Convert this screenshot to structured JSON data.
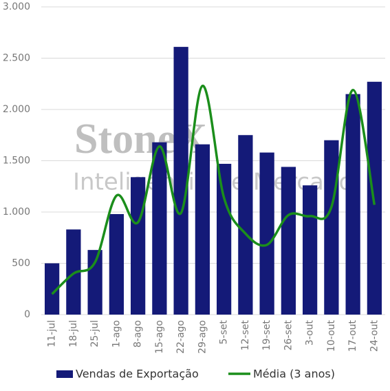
{
  "chart_data": {
    "type": "bar-line",
    "watermark": [
      "StoneX",
      "Inteligência de Mercado"
    ],
    "categories": [
      "11-jul",
      "18-jul",
      "25-jul",
      "1-ago",
      "8-ago",
      "15-ago",
      "22-ago",
      "29-ago",
      "5-set",
      "12-set",
      "19-set",
      "26-set",
      "3-out",
      "10-out",
      "17-out",
      "24-out"
    ],
    "series": [
      {
        "name": "Vendas de Exportação",
        "type": "bar",
        "color": "#141a78",
        "values": [
          500,
          830,
          630,
          980,
          1340,
          1680,
          2610,
          1660,
          1470,
          1750,
          1580,
          1440,
          1260,
          1700,
          2150,
          2270
        ]
      },
      {
        "name": "Média (3 anos)",
        "type": "line",
        "color": "#1b8e1b",
        "values": [
          200,
          400,
          510,
          1160,
          900,
          1640,
          990,
          2230,
          1140,
          790,
          680,
          970,
          960,
          1050,
          2190,
          1070
        ]
      }
    ],
    "ylim": [
      0,
      3000
    ],
    "yticks": [
      0,
      500,
      {
        "value": 1000,
        "label": "1.000"
      },
      {
        "value": 1500,
        "label": "1.500"
      },
      {
        "value": 2000,
        "label": "2.000"
      },
      {
        "value": 2500,
        "label": "2.500"
      },
      {
        "value": 3000,
        "label": "3.000"
      }
    ],
    "grid": true,
    "legend": "bottom"
  }
}
